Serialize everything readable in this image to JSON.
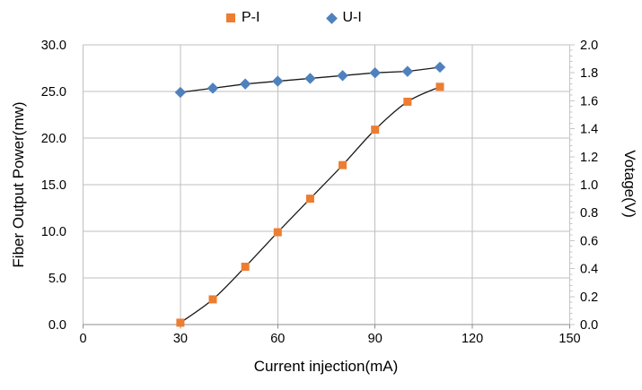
{
  "chart_data": {
    "type": "line",
    "title": "",
    "x": [
      30,
      40,
      50,
      60,
      70,
      80,
      90,
      100,
      110
    ],
    "series": [
      {
        "name": "P-I",
        "axis": "left",
        "marker": "square",
        "marker_color": "#ED7D31",
        "line_color": "#1a1a1a",
        "smooth": true,
        "values": [
          0.2,
          2.7,
          6.2,
          9.9,
          13.5,
          17.1,
          20.9,
          23.9,
          25.5
        ]
      },
      {
        "name": "U-I",
        "axis": "right",
        "marker": "diamond",
        "marker_color": "#4F81BD",
        "line_color": "#1a1a1a",
        "smooth": false,
        "values": [
          1.66,
          1.69,
          1.72,
          1.74,
          1.76,
          1.78,
          1.8,
          1.81,
          1.84
        ]
      }
    ],
    "x_axis": {
      "label": "Current injection(mA)",
      "min": 0,
      "max": 150,
      "tick_labels": [
        "0",
        "30",
        "60",
        "90",
        "120",
        "150"
      ]
    },
    "y_axis_left": {
      "label": "Fiber Output Power(mw)",
      "min": 0,
      "max": 30,
      "tick_labels": [
        "0.0",
        "5.0",
        "10.0",
        "15.0",
        "20.0",
        "25.0",
        "30.0"
      ]
    },
    "y_axis_right": {
      "label": "Votage(V)",
      "min": 0,
      "max": 2,
      "tick_labels": [
        "0.0",
        "0.2",
        "0.4",
        "0.6",
        "0.8",
        "1.0",
        "1.2",
        "1.4",
        "1.6",
        "1.8",
        "2.0"
      ]
    },
    "legend": {
      "position": "top",
      "items": [
        "P-I",
        "U-I"
      ]
    },
    "grid": true,
    "colors": {
      "gridline": "#BFBFBF",
      "x_axis_line": "#8C8C8C",
      "right_axis_line": "#C6C6C6",
      "text": "#000000",
      "background": "#FFFFFF"
    }
  }
}
